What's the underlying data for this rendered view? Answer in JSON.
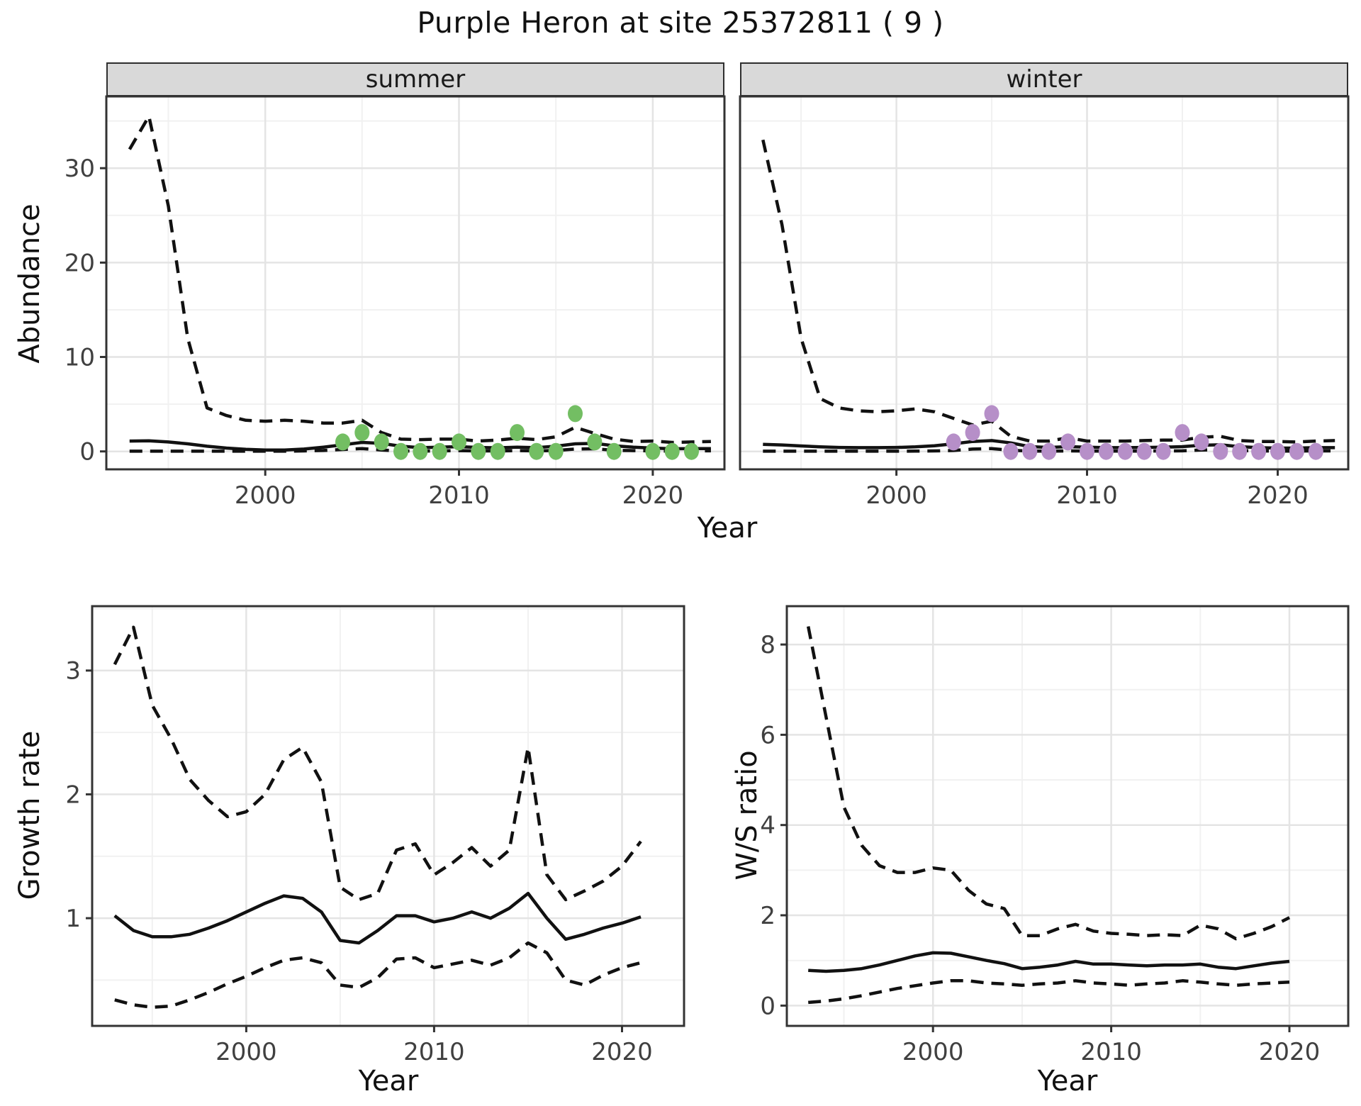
{
  "title": "Purple Heron at site 25372811 ( 9 )",
  "facets": {
    "summer": "summer",
    "winter": "winter"
  },
  "axis_labels": {
    "y_top": "Abundance",
    "y_bottom_left": "Growth rate",
    "y_bottom_right": "W/S ratio",
    "x": "Year"
  },
  "style": {
    "summer_point_color": "#73BE63",
    "winter_point_color": "#B68FC8",
    "line_color": "#111111",
    "strip_bg": "#D9D9D9",
    "panel_border": "#333333",
    "grid_major": "#E4E4E4",
    "grid_minor": "#F1F1F1",
    "axis_text_color": "#404040",
    "tick_color": "#333333"
  },
  "chart_data": [
    {
      "id": "abundance_summer",
      "type": "line",
      "facet_label": "summer",
      "xlabel": "Year",
      "ylabel": "Abundance",
      "xlim": [
        1991.8,
        2023.7
      ],
      "ylim": [
        -1.9,
        37.6
      ],
      "xticks": [
        2000,
        2010,
        2020
      ],
      "xminor": [
        1995,
        2005,
        2015
      ],
      "yticks": [
        0,
        10,
        20,
        30
      ],
      "yminor": [
        5,
        15,
        25,
        35
      ],
      "series": [
        {
          "name": "upper_95ci",
          "style": "dashed",
          "x": [
            1993,
            1994,
            1995,
            1996,
            1997,
            1998,
            1999,
            2000,
            2001,
            2002,
            2003,
            2004,
            2005,
            2006,
            2007,
            2008,
            2009,
            2010,
            2011,
            2012,
            2013,
            2014,
            2015,
            2016,
            2017,
            2018,
            2019,
            2020,
            2021,
            2022,
            2023
          ],
          "y": [
            32,
            35.5,
            26,
            12,
            4.6,
            3.8,
            3.3,
            3.2,
            3.3,
            3.2,
            3.0,
            3.0,
            3.3,
            2.0,
            1.3,
            1.25,
            1.3,
            1.3,
            1.1,
            1.2,
            1.4,
            1.25,
            1.55,
            2.55,
            1.9,
            1.3,
            1.05,
            1.1,
            0.95,
            1.0,
            1.05
          ]
        },
        {
          "name": "median_estimate",
          "style": "solid",
          "x": [
            1993,
            1994,
            1995,
            1996,
            1997,
            1998,
            1999,
            2000,
            2001,
            2002,
            2003,
            2004,
            2005,
            2006,
            2007,
            2008,
            2009,
            2010,
            2011,
            2012,
            2013,
            2014,
            2015,
            2016,
            2017,
            2018,
            2019,
            2020,
            2021,
            2022,
            2023
          ],
          "y": [
            1.1,
            1.12,
            1.0,
            0.8,
            0.55,
            0.35,
            0.22,
            0.15,
            0.15,
            0.25,
            0.45,
            0.7,
            0.95,
            0.85,
            0.55,
            0.4,
            0.45,
            0.5,
            0.42,
            0.38,
            0.45,
            0.4,
            0.55,
            0.8,
            0.85,
            0.6,
            0.45,
            0.35,
            0.28,
            0.3,
            0.3
          ]
        },
        {
          "name": "lower_95ci",
          "style": "dashed",
          "x": [
            1993,
            1994,
            1995,
            1996,
            1997,
            1998,
            1999,
            2000,
            2001,
            2002,
            2003,
            2004,
            2005,
            2006,
            2007,
            2008,
            2009,
            2010,
            2011,
            2012,
            2013,
            2014,
            2015,
            2016,
            2017,
            2018,
            2019,
            2020,
            2021,
            2022,
            2023
          ],
          "y": [
            0.02,
            0.02,
            0.02,
            0.02,
            0.02,
            0.02,
            0.02,
            0.02,
            0.02,
            0.05,
            0.1,
            0.2,
            0.3,
            0.15,
            0.05,
            0.03,
            0.05,
            0.08,
            0.05,
            0.05,
            0.08,
            0.05,
            0.1,
            0.25,
            0.28,
            0.12,
            0.08,
            0.05,
            0.04,
            0.05,
            0.06
          ]
        }
      ],
      "points": {
        "name": "observed_counts_summer",
        "color_key": "summer_point_color",
        "x": [
          2004,
          2005,
          2006,
          2007,
          2008,
          2009,
          2010,
          2011,
          2012,
          2013,
          2014,
          2015,
          2016,
          2017,
          2018,
          2020,
          2021,
          2022
        ],
        "y": [
          1,
          2,
          1,
          0,
          0,
          0,
          1,
          0,
          0,
          2,
          0,
          0,
          4,
          1,
          0,
          0,
          0,
          0
        ]
      }
    },
    {
      "id": "abundance_winter",
      "type": "line",
      "facet_label": "winter",
      "xlabel": "Year",
      "ylabel": "Abundance",
      "xlim": [
        1991.8,
        2023.7
      ],
      "ylim": [
        -1.9,
        37.6
      ],
      "xticks": [
        2000,
        2010,
        2020
      ],
      "xminor": [
        1995,
        2005,
        2015
      ],
      "yticks": [
        0,
        10,
        20,
        30
      ],
      "yminor": [
        5,
        15,
        25,
        35
      ],
      "series": [
        {
          "name": "upper_95ci",
          "style": "dashed",
          "x": [
            1993,
            1994,
            1995,
            1996,
            1997,
            1998,
            1999,
            2000,
            2001,
            2002,
            2003,
            2004,
            2005,
            2006,
            2007,
            2008,
            2009,
            2010,
            2011,
            2012,
            2013,
            2014,
            2015,
            2016,
            2017,
            2018,
            2019,
            2020,
            2021,
            2022,
            2023
          ],
          "y": [
            33,
            24,
            12,
            5.6,
            4.6,
            4.3,
            4.2,
            4.3,
            4.5,
            4.2,
            3.5,
            2.8,
            3.2,
            1.6,
            1.1,
            1.1,
            1.45,
            1.1,
            1.1,
            1.1,
            1.15,
            1.2,
            1.2,
            1.5,
            1.6,
            1.15,
            1.05,
            1.05,
            1.0,
            1.1,
            1.15
          ]
        },
        {
          "name": "median_estimate",
          "style": "solid",
          "x": [
            1993,
            1994,
            1995,
            1996,
            1997,
            1998,
            1999,
            2000,
            2001,
            2002,
            2003,
            2004,
            2005,
            2006,
            2007,
            2008,
            2009,
            2010,
            2011,
            2012,
            2013,
            2014,
            2015,
            2016,
            2017,
            2018,
            2019,
            2020,
            2021,
            2022,
            2023
          ],
          "y": [
            0.75,
            0.68,
            0.58,
            0.48,
            0.42,
            0.4,
            0.4,
            0.42,
            0.48,
            0.6,
            0.8,
            1.05,
            1.15,
            0.9,
            0.5,
            0.42,
            0.5,
            0.45,
            0.4,
            0.4,
            0.42,
            0.45,
            0.5,
            0.65,
            0.7,
            0.5,
            0.4,
            0.35,
            0.35,
            0.4,
            0.4
          ]
        },
        {
          "name": "lower_95ci",
          "style": "dashed",
          "x": [
            1993,
            1994,
            1995,
            1996,
            1997,
            1998,
            1999,
            2000,
            2001,
            2002,
            2003,
            2004,
            2005,
            2006,
            2007,
            2008,
            2009,
            2010,
            2011,
            2012,
            2013,
            2014,
            2015,
            2016,
            2017,
            2018,
            2019,
            2020,
            2021,
            2022,
            2023
          ],
          "y": [
            0.02,
            0.02,
            0.02,
            0.02,
            0.02,
            0.02,
            0.02,
            0.02,
            0.03,
            0.05,
            0.1,
            0.25,
            0.3,
            0.12,
            0.04,
            0.03,
            0.05,
            0.04,
            0.03,
            0.03,
            0.04,
            0.05,
            0.06,
            0.15,
            0.18,
            0.08,
            0.05,
            0.04,
            0.04,
            0.05,
            0.05
          ]
        }
      ],
      "points": {
        "name": "observed_counts_winter",
        "color_key": "winter_point_color",
        "x": [
          2003,
          2004,
          2005,
          2006,
          2007,
          2008,
          2009,
          2010,
          2011,
          2012,
          2013,
          2014,
          2015,
          2016,
          2017,
          2018,
          2019,
          2020,
          2021,
          2022
        ],
        "y": [
          1,
          2,
          4,
          0,
          0,
          0,
          1,
          0,
          0,
          0,
          0,
          0,
          2,
          1,
          0,
          0,
          0,
          0,
          0,
          0
        ]
      }
    },
    {
      "id": "growth_rate",
      "type": "line",
      "facet_label": "",
      "xlabel": "Year",
      "ylabel": "Growth rate",
      "xlim": [
        1991.8,
        2023.3
      ],
      "ylim": [
        0.13,
        3.52
      ],
      "xticks": [
        2000,
        2010,
        2020
      ],
      "xminor": [
        1995,
        2005,
        2015
      ],
      "yticks": [
        1,
        2,
        3
      ],
      "yminor": [
        0.5,
        1.5,
        2.5,
        3.5
      ],
      "series": [
        {
          "name": "upper_95ci",
          "style": "dashed",
          "x": [
            1993,
            1994,
            1995,
            1996,
            1997,
            1998,
            1999,
            2000,
            2001,
            2002,
            2003,
            2004,
            2005,
            2006,
            2007,
            2008,
            2009,
            2010,
            2011,
            2012,
            2013,
            2014,
            2015,
            2016,
            2017,
            2018,
            2019,
            2020,
            2021
          ],
          "y": [
            3.05,
            3.35,
            2.72,
            2.45,
            2.12,
            1.95,
            1.82,
            1.86,
            2.0,
            2.28,
            2.38,
            2.1,
            1.25,
            1.15,
            1.2,
            1.55,
            1.6,
            1.35,
            1.45,
            1.57,
            1.42,
            1.55,
            2.38,
            1.35,
            1.15,
            1.22,
            1.3,
            1.42,
            1.62
          ]
        },
        {
          "name": "median_estimate",
          "style": "solid",
          "x": [
            1993,
            1994,
            1995,
            1996,
            1997,
            1998,
            1999,
            2000,
            2001,
            2002,
            2003,
            2004,
            2005,
            2006,
            2007,
            2008,
            2009,
            2010,
            2011,
            2012,
            2013,
            2014,
            2015,
            2016,
            2017,
            2018,
            2019,
            2020,
            2021
          ],
          "y": [
            1.02,
            0.9,
            0.85,
            0.85,
            0.87,
            0.92,
            0.98,
            1.05,
            1.12,
            1.18,
            1.16,
            1.05,
            0.82,
            0.8,
            0.9,
            1.02,
            1.02,
            0.97,
            1.0,
            1.05,
            1.0,
            1.08,
            1.2,
            1.0,
            0.83,
            0.87,
            0.92,
            0.96,
            1.01
          ]
        },
        {
          "name": "lower_95ci",
          "style": "dashed",
          "x": [
            1993,
            1994,
            1995,
            1996,
            1997,
            1998,
            1999,
            2000,
            2001,
            2002,
            2003,
            2004,
            2005,
            2006,
            2007,
            2008,
            2009,
            2010,
            2011,
            2012,
            2013,
            2014,
            2015,
            2016,
            2017,
            2018,
            2019,
            2020,
            2021
          ],
          "y": [
            0.34,
            0.3,
            0.28,
            0.29,
            0.34,
            0.4,
            0.47,
            0.53,
            0.6,
            0.66,
            0.68,
            0.64,
            0.46,
            0.44,
            0.52,
            0.67,
            0.68,
            0.6,
            0.63,
            0.66,
            0.62,
            0.68,
            0.8,
            0.72,
            0.5,
            0.46,
            0.54,
            0.6,
            0.64
          ]
        }
      ],
      "points": null
    },
    {
      "id": "ws_ratio",
      "type": "line",
      "facet_label": "",
      "xlabel": "Year",
      "ylabel": "W/S ratio",
      "xlim": [
        1991.8,
        2023.3
      ],
      "ylim": [
        -0.45,
        8.85
      ],
      "xticks": [
        2000,
        2010,
        2020
      ],
      "xminor": [
        1995,
        2005,
        2015
      ],
      "yticks": [
        0,
        2,
        4,
        6,
        8
      ],
      "yminor": [
        1,
        3,
        5,
        7
      ],
      "series": [
        {
          "name": "upper_95ci",
          "style": "dashed",
          "x": [
            1993,
            1994,
            1995,
            1996,
            1997,
            1998,
            1999,
            2000,
            2001,
            2002,
            2003,
            2004,
            2005,
            2006,
            2007,
            2008,
            2009,
            2010,
            2011,
            2012,
            2013,
            2014,
            2015,
            2016,
            2017,
            2018,
            2019,
            2020
          ],
          "y": [
            8.4,
            6.4,
            4.4,
            3.55,
            3.1,
            2.95,
            2.95,
            3.05,
            3.0,
            2.55,
            2.25,
            2.15,
            1.55,
            1.55,
            1.7,
            1.8,
            1.65,
            1.6,
            1.58,
            1.55,
            1.57,
            1.55,
            1.78,
            1.7,
            1.48,
            1.6,
            1.75,
            1.95
          ]
        },
        {
          "name": "median_estimate",
          "style": "solid",
          "x": [
            1993,
            1994,
            1995,
            1996,
            1997,
            1998,
            1999,
            2000,
            2001,
            2002,
            2003,
            2004,
            2005,
            2006,
            2007,
            2008,
            2009,
            2010,
            2011,
            2012,
            2013,
            2014,
            2015,
            2016,
            2017,
            2018,
            2019,
            2020
          ],
          "y": [
            0.78,
            0.76,
            0.78,
            0.82,
            0.9,
            1.0,
            1.1,
            1.17,
            1.16,
            1.08,
            1.0,
            0.93,
            0.82,
            0.85,
            0.9,
            0.98,
            0.92,
            0.92,
            0.9,
            0.88,
            0.9,
            0.9,
            0.92,
            0.85,
            0.82,
            0.88,
            0.94,
            0.98
          ]
        },
        {
          "name": "lower_95ci",
          "style": "dashed",
          "x": [
            1993,
            1994,
            1995,
            1996,
            1997,
            1998,
            1999,
            2000,
            2001,
            2002,
            2003,
            2004,
            2005,
            2006,
            2007,
            2008,
            2009,
            2010,
            2011,
            2012,
            2013,
            2014,
            2015,
            2016,
            2017,
            2018,
            2019,
            2020
          ],
          "y": [
            0.07,
            0.1,
            0.15,
            0.22,
            0.3,
            0.38,
            0.44,
            0.5,
            0.55,
            0.55,
            0.5,
            0.48,
            0.45,
            0.48,
            0.5,
            0.55,
            0.5,
            0.48,
            0.45,
            0.48,
            0.5,
            0.55,
            0.52,
            0.48,
            0.45,
            0.48,
            0.5,
            0.52
          ]
        }
      ],
      "points": null
    }
  ]
}
